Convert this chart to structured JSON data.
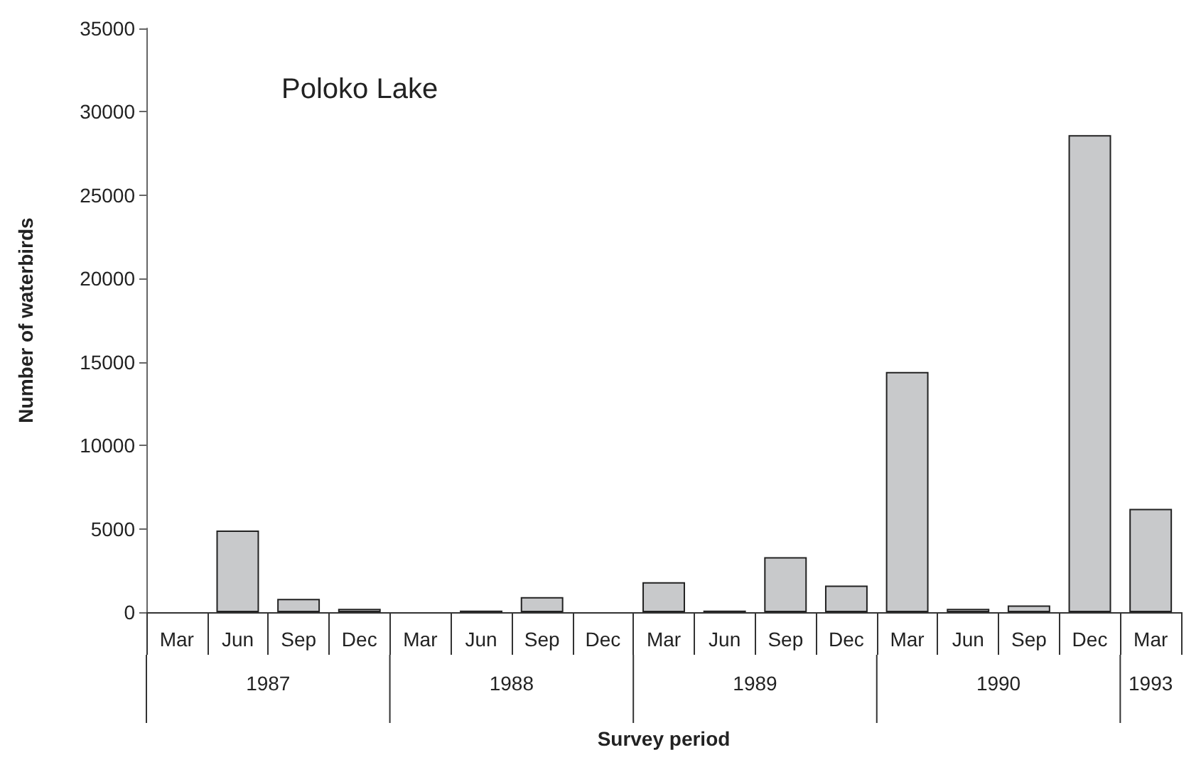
{
  "chart_data": {
    "type": "bar",
    "title": "Poloko Lake",
    "xlabel": "Survey period",
    "ylabel": "Number of waterbirds",
    "categories": [
      "Mar",
      "Jun",
      "Sep",
      "Dec",
      "Mar",
      "Jun",
      "Sep",
      "Dec",
      "Mar",
      "Jun",
      "Sep",
      "Dec",
      "Mar",
      "Jun",
      "Sep",
      "Dec",
      "Mar"
    ],
    "values": [
      null,
      4900,
      800,
      200,
      null,
      100,
      900,
      null,
      1800,
      100,
      3300,
      1600,
      14400,
      200,
      400,
      28600,
      6200
    ],
    "color": "#c8c9cb",
    "ylim": [
      0,
      35000
    ],
    "yticks": [
      0,
      5000,
      10000,
      15000,
      20000,
      25000,
      30000,
      35000
    ],
    "grid": false,
    "annotations": [
      "1987",
      "1988",
      "1989",
      "1990",
      "1993"
    ]
  }
}
